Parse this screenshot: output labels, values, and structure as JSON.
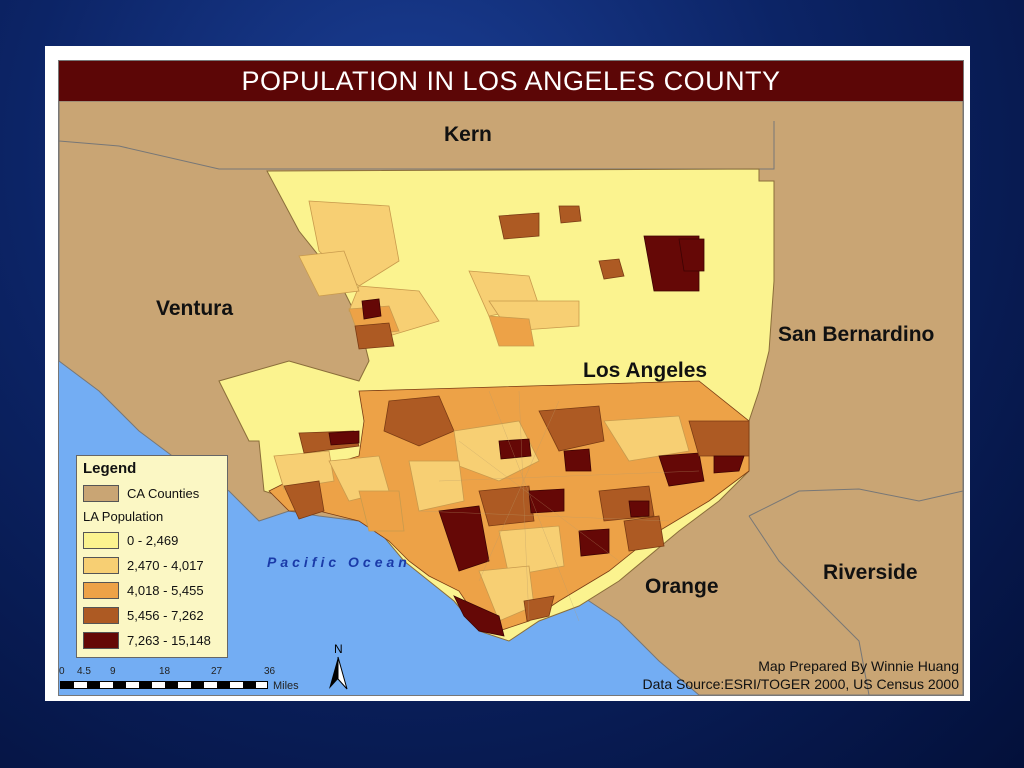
{
  "map": {
    "title": "POPULATION IN LOS ANGELES COUNTY",
    "county_labels": [
      {
        "key": "kern",
        "text": "Kern"
      },
      {
        "key": "ventura",
        "text": "Ventura"
      },
      {
        "key": "san_bernardino",
        "text": "San Bernardino"
      },
      {
        "key": "los_angeles",
        "text": "Los Angeles"
      },
      {
        "key": "orange",
        "text": "Orange"
      },
      {
        "key": "riverside",
        "text": "Riverside"
      }
    ],
    "ocean_label": "Pacific Ocean",
    "legend": {
      "title": "Legend",
      "counties_label": "CA Counties",
      "population_label": "LA Population",
      "classes": [
        {
          "range": "0 - 2,469",
          "color": "#fbf38f"
        },
        {
          "range": "2,470 - 4,017",
          "color": "#f7cf73"
        },
        {
          "range": "4,018 - 5,455",
          "color": "#eda247"
        },
        {
          "range": "5,456 - 7,262",
          "color": "#ad5a23"
        },
        {
          "range": "7,263 - 15,148",
          "color": "#650806"
        }
      ],
      "county_color": "#c9a574"
    },
    "scale": {
      "ticks": [
        "0",
        "4.5",
        "9",
        "18",
        "27",
        "36"
      ],
      "unit": "Miles"
    },
    "north_label": "N",
    "credits": {
      "prepared_by": "Map Prepared By Winnie Huang",
      "data_source": "Data Source:ESRI/TOGER 2000, US Census 2000"
    },
    "colors": {
      "title_bar": "#5c0606",
      "ocean": "#73adf3",
      "county_fill": "#c9a574",
      "background": "#0c2466"
    }
  }
}
